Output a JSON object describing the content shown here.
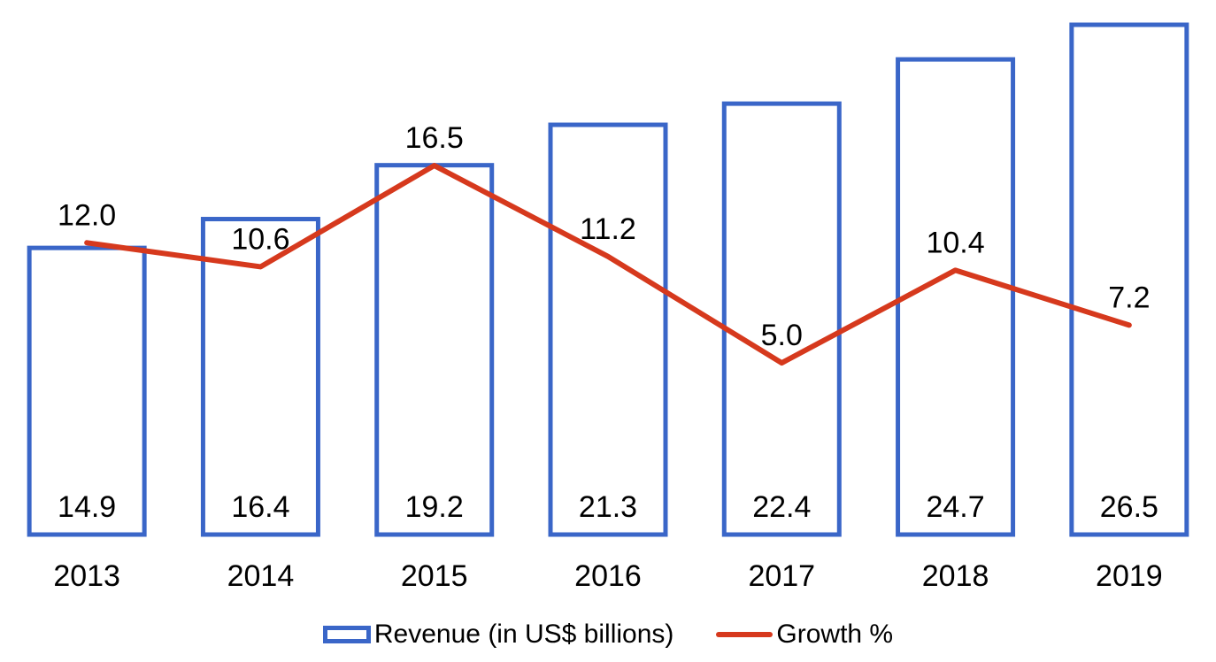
{
  "chart_data": {
    "type": "bar",
    "categories": [
      "2013",
      "2014",
      "2015",
      "2016",
      "2017",
      "2018",
      "2019"
    ],
    "series": [
      {
        "name": "Revenue (in US$ billions)",
        "type": "bar",
        "axis": "left",
        "values": [
          14.9,
          16.4,
          19.2,
          21.3,
          22.4,
          24.7,
          26.5
        ]
      },
      {
        "name": "Growth %",
        "type": "line",
        "axis": "right",
        "values": [
          12.0,
          10.6,
          16.5,
          11.2,
          5.0,
          10.4,
          7.2
        ]
      }
    ],
    "title": "",
    "xlabel": "",
    "ylabel": "",
    "ylim": [
      0,
      26.5
    ],
    "y2lim": [
      -5.0,
      24.7
    ],
    "legend_position": "bottom",
    "grid": false,
    "colors": {
      "bar": "#3a66c8",
      "line": "#d6391d"
    }
  }
}
